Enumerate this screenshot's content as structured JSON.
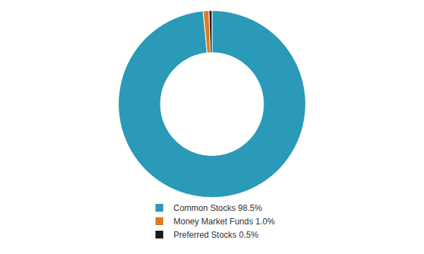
{
  "chart_data": {
    "type": "donut",
    "categories": [
      "Common Stocks 98.5%",
      "Money Market Funds 1.0%",
      "Preferred Stocks 0.5%"
    ],
    "values": [
      98.5,
      1.0,
      0.5
    ],
    "colors": [
      "#2b9ab8",
      "#e07b20",
      "#1a1a1a"
    ],
    "legend": "bottom"
  }
}
